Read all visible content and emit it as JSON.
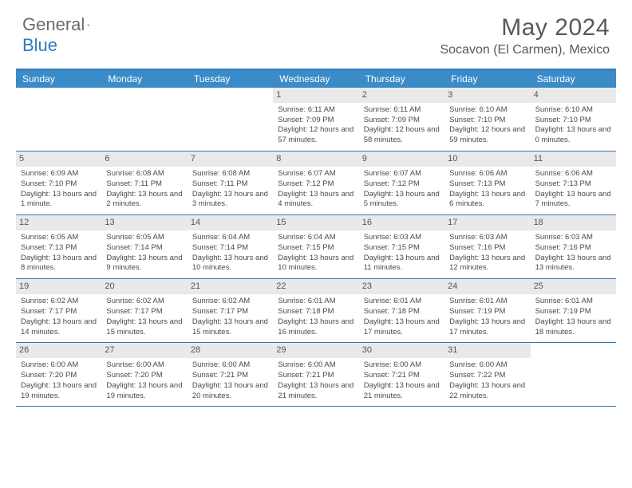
{
  "brand": {
    "part1": "General",
    "part2": "Blue"
  },
  "title": "May 2024",
  "location": "Socavon (El Carmen), Mexico",
  "colors": {
    "header_bar": "#3b8bc8",
    "rule": "#2f7abf",
    "daynum_bg": "#e9e9e9",
    "text": "#4a4a4a",
    "title_text": "#595959"
  },
  "days_of_week": [
    "Sunday",
    "Monday",
    "Tuesday",
    "Wednesday",
    "Thursday",
    "Friday",
    "Saturday"
  ],
  "weeks": [
    [
      null,
      null,
      null,
      {
        "n": "1",
        "sr": "6:11 AM",
        "ss": "7:09 PM",
        "dl": "12 hours and 57 minutes."
      },
      {
        "n": "2",
        "sr": "6:11 AM",
        "ss": "7:09 PM",
        "dl": "12 hours and 58 minutes."
      },
      {
        "n": "3",
        "sr": "6:10 AM",
        "ss": "7:10 PM",
        "dl": "12 hours and 59 minutes."
      },
      {
        "n": "4",
        "sr": "6:10 AM",
        "ss": "7:10 PM",
        "dl": "13 hours and 0 minutes."
      }
    ],
    [
      {
        "n": "5",
        "sr": "6:09 AM",
        "ss": "7:10 PM",
        "dl": "13 hours and 1 minute."
      },
      {
        "n": "6",
        "sr": "6:08 AM",
        "ss": "7:11 PM",
        "dl": "13 hours and 2 minutes."
      },
      {
        "n": "7",
        "sr": "6:08 AM",
        "ss": "7:11 PM",
        "dl": "13 hours and 3 minutes."
      },
      {
        "n": "8",
        "sr": "6:07 AM",
        "ss": "7:12 PM",
        "dl": "13 hours and 4 minutes."
      },
      {
        "n": "9",
        "sr": "6:07 AM",
        "ss": "7:12 PM",
        "dl": "13 hours and 5 minutes."
      },
      {
        "n": "10",
        "sr": "6:06 AM",
        "ss": "7:13 PM",
        "dl": "13 hours and 6 minutes."
      },
      {
        "n": "11",
        "sr": "6:06 AM",
        "ss": "7:13 PM",
        "dl": "13 hours and 7 minutes."
      }
    ],
    [
      {
        "n": "12",
        "sr": "6:05 AM",
        "ss": "7:13 PM",
        "dl": "13 hours and 8 minutes."
      },
      {
        "n": "13",
        "sr": "6:05 AM",
        "ss": "7:14 PM",
        "dl": "13 hours and 9 minutes."
      },
      {
        "n": "14",
        "sr": "6:04 AM",
        "ss": "7:14 PM",
        "dl": "13 hours and 10 minutes."
      },
      {
        "n": "15",
        "sr": "6:04 AM",
        "ss": "7:15 PM",
        "dl": "13 hours and 10 minutes."
      },
      {
        "n": "16",
        "sr": "6:03 AM",
        "ss": "7:15 PM",
        "dl": "13 hours and 11 minutes."
      },
      {
        "n": "17",
        "sr": "6:03 AM",
        "ss": "7:16 PM",
        "dl": "13 hours and 12 minutes."
      },
      {
        "n": "18",
        "sr": "6:03 AM",
        "ss": "7:16 PM",
        "dl": "13 hours and 13 minutes."
      }
    ],
    [
      {
        "n": "19",
        "sr": "6:02 AM",
        "ss": "7:17 PM",
        "dl": "13 hours and 14 minutes."
      },
      {
        "n": "20",
        "sr": "6:02 AM",
        "ss": "7:17 PM",
        "dl": "13 hours and 15 minutes."
      },
      {
        "n": "21",
        "sr": "6:02 AM",
        "ss": "7:17 PM",
        "dl": "13 hours and 15 minutes."
      },
      {
        "n": "22",
        "sr": "6:01 AM",
        "ss": "7:18 PM",
        "dl": "13 hours and 16 minutes."
      },
      {
        "n": "23",
        "sr": "6:01 AM",
        "ss": "7:18 PM",
        "dl": "13 hours and 17 minutes."
      },
      {
        "n": "24",
        "sr": "6:01 AM",
        "ss": "7:19 PM",
        "dl": "13 hours and 17 minutes."
      },
      {
        "n": "25",
        "sr": "6:01 AM",
        "ss": "7:19 PM",
        "dl": "13 hours and 18 minutes."
      }
    ],
    [
      {
        "n": "26",
        "sr": "6:00 AM",
        "ss": "7:20 PM",
        "dl": "13 hours and 19 minutes."
      },
      {
        "n": "27",
        "sr": "6:00 AM",
        "ss": "7:20 PM",
        "dl": "13 hours and 19 minutes."
      },
      {
        "n": "28",
        "sr": "6:00 AM",
        "ss": "7:21 PM",
        "dl": "13 hours and 20 minutes."
      },
      {
        "n": "29",
        "sr": "6:00 AM",
        "ss": "7:21 PM",
        "dl": "13 hours and 21 minutes."
      },
      {
        "n": "30",
        "sr": "6:00 AM",
        "ss": "7:21 PM",
        "dl": "13 hours and 21 minutes."
      },
      {
        "n": "31",
        "sr": "6:00 AM",
        "ss": "7:22 PM",
        "dl": "13 hours and 22 minutes."
      },
      null
    ]
  ],
  "labels": {
    "sunrise": "Sunrise: ",
    "sunset": "Sunset: ",
    "daylight": "Daylight: "
  }
}
